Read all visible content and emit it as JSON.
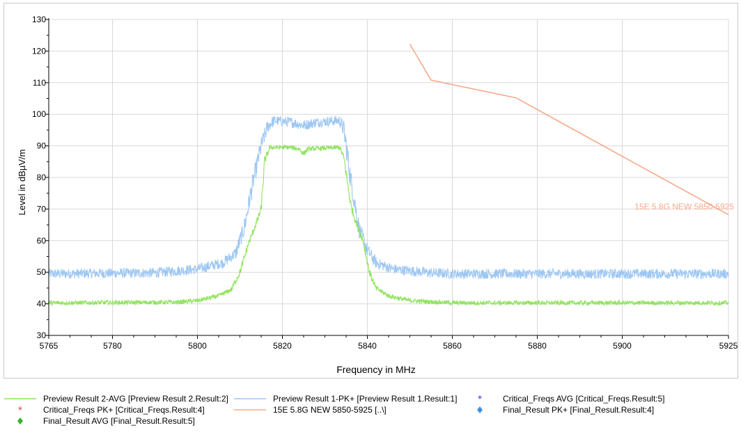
{
  "chart_data": {
    "type": "line",
    "title": "",
    "xlabel": "Frequency in MHz",
    "ylabel": "Level in dBµV/m",
    "xlim": [
      5765,
      5925
    ],
    "ylim": [
      30,
      130
    ],
    "x_ticks": [
      "5765",
      "5780",
      "5800",
      "5820",
      "5840",
      "5860",
      "5880",
      "5900",
      "5925"
    ],
    "y_ticks": [
      "30",
      "40",
      "50",
      "60",
      "70",
      "80",
      "90",
      "100",
      "110",
      "120",
      "130"
    ],
    "grid": true,
    "series": [
      {
        "name": "Preview Result 1-PK+",
        "color": "#9dc7f3",
        "noise": 1.6,
        "points": [
          [
            5765,
            49.5
          ],
          [
            5790,
            49.8
          ],
          [
            5800,
            51
          ],
          [
            5806,
            53
          ],
          [
            5809,
            56
          ],
          [
            5811,
            64
          ],
          [
            5813,
            78
          ],
          [
            5815,
            90
          ],
          [
            5816.5,
            96
          ],
          [
            5818,
            98
          ],
          [
            5822,
            97.5
          ],
          [
            5825,
            96.5
          ],
          [
            5828,
            97.5
          ],
          [
            5833.5,
            98
          ],
          [
            5834.5,
            95
          ],
          [
            5836,
            80
          ],
          [
            5838,
            64
          ],
          [
            5840,
            57
          ],
          [
            5842,
            53
          ],
          [
            5846,
            51
          ],
          [
            5855,
            49.8
          ],
          [
            5860,
            49.5
          ],
          [
            5925,
            49.5
          ]
        ]
      },
      {
        "name": "Preview Result 2-AVG",
        "color": "#8fe35e",
        "noise": 0.7,
        "points": [
          [
            5765,
            40.3
          ],
          [
            5795,
            40.5
          ],
          [
            5800,
            41
          ],
          [
            5805,
            42.5
          ],
          [
            5808,
            44.5
          ],
          [
            5810,
            50
          ],
          [
            5812,
            59
          ],
          [
            5814,
            66
          ],
          [
            5815,
            70
          ],
          [
            5815.8,
            85
          ],
          [
            5817,
            89.5
          ],
          [
            5822,
            89.5
          ],
          [
            5824,
            89
          ],
          [
            5825,
            87.5
          ],
          [
            5826,
            89
          ],
          [
            5833.5,
            89.5
          ],
          [
            5834.5,
            86
          ],
          [
            5836,
            72
          ],
          [
            5837,
            67
          ],
          [
            5839,
            60
          ],
          [
            5840.5,
            50
          ],
          [
            5842,
            45
          ],
          [
            5845,
            42.5
          ],
          [
            5850,
            41
          ],
          [
            5860,
            40.3
          ],
          [
            5925,
            40.3
          ]
        ]
      },
      {
        "name": "15E 5.8G NEW 5850-5925",
        "color": "#f6a98a",
        "noise": 0,
        "points": [
          [
            5850,
            122.2
          ],
          [
            5855,
            110.8
          ],
          [
            5875,
            105.2
          ],
          [
            5925,
            68.2
          ]
        ],
        "annotation": "15E 5.8G NEW 5850-5925"
      }
    ],
    "legend": {
      "placement": "bottom",
      "entries": [
        {
          "name": "Preview Result 2-AVG   [Preview Result 2.Result:2]",
          "symbol": "line",
          "color": "#8fe35e"
        },
        {
          "name": "Preview Result 1-PK+   [Preview Result 1.Result:1]",
          "symbol": "line",
          "color": "#9dc7f3"
        },
        {
          "name": "Critical_Freqs AVG   [Critical_Freqs.Result:5]",
          "symbol": "star",
          "color": "#1c1cd6"
        },
        {
          "name": "Critical_Freqs PK+   [Critical_Freqs.Result:4]",
          "symbol": "star",
          "color": "#e0242a"
        },
        {
          "name": "15E 5.8G NEW 5850-5925   [..\\]",
          "symbol": "line",
          "color": "#f6a98a"
        },
        {
          "name": "Final_Result PK+   [Final_Result.Result:4]",
          "symbol": "diamond",
          "color": "#3d92e0"
        },
        {
          "name": "Final_Result AVG   [Final_Result.Result:5]",
          "symbol": "diamond",
          "color": "#2fb52f"
        }
      ]
    }
  }
}
